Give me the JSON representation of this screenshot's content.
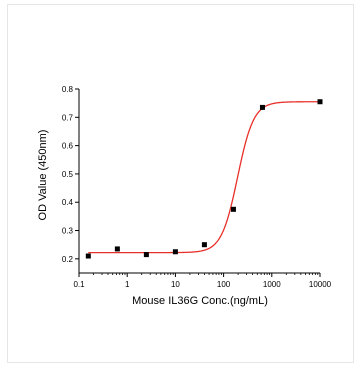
{
  "chart_data": {
    "type": "scatter",
    "xlabel": "Mouse IL36G Conc.(ng/mL)",
    "ylabel": "OD Value (450nm)",
    "x_scale": "log",
    "xlim": [
      0.1,
      10000
    ],
    "ylim": [
      0.15,
      0.8
    ],
    "x_tick_labels": [
      "0.1",
      "1",
      "10",
      "100",
      "1000",
      "10000"
    ],
    "y_tick_labels": [
      "0.2",
      "0.3",
      "0.4",
      "0.5",
      "0.6",
      "0.7",
      "0.8"
    ],
    "grid": false,
    "legend": "none",
    "series": [
      {
        "marker_color": "#000000",
        "line_color": "#e8302a",
        "fit": "4-parameter logistic",
        "x": [
          0.156,
          0.625,
          2.5,
          10,
          40,
          160,
          640,
          10000
        ],
        "y": [
          0.21,
          0.235,
          0.215,
          0.225,
          0.25,
          0.375,
          0.735,
          0.755
        ]
      }
    ]
  }
}
